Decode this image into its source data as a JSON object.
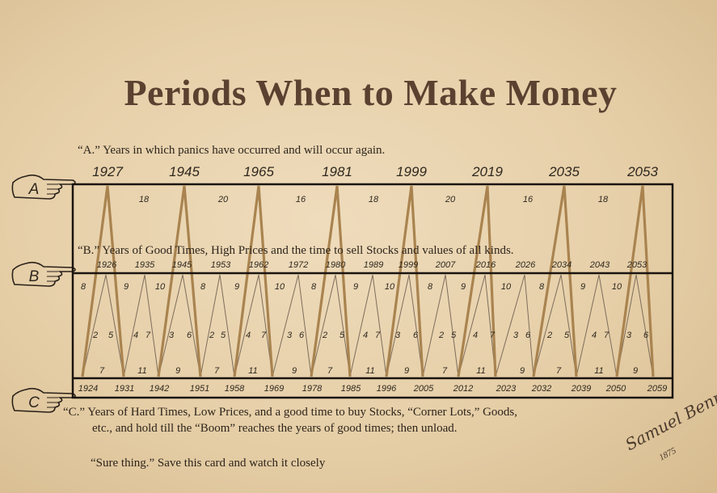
{
  "title": "Periods When to Make Money",
  "notes": {
    "a": "“A.” Years in which panics have occurred and will occur again.",
    "b": "“B.” Years of Good Times, High Prices and the time to sell Stocks and values of all kinds.",
    "c_line1": "“C.”    Years of Hard Times, Low Prices, and a good time to buy Stocks, “Corner Lots,” Goods,",
    "c_line2": "etc., and hold till  the “Boom” reaches the years of good times; then unload.",
    "sure": "“Sure thing.” Save this card and watch it closely"
  },
  "hands": {
    "a": "A",
    "b": "B",
    "c": "C",
    "icon": "pointing-hand-icon"
  },
  "chart_data": {
    "type": "diagram",
    "panic_years": [
      "1927",
      "1945",
      "1965",
      "1981",
      "1999",
      "2019",
      "2035",
      "2053"
    ],
    "panic_intervals": [
      "18",
      "20",
      "16",
      "18",
      "20",
      "16",
      "18"
    ],
    "good_times_years": [
      "1926",
      "1935",
      "1945",
      "1953",
      "1962",
      "1972",
      "1980",
      "1989",
      "1999",
      "2007",
      "2016",
      "2026",
      "2034",
      "2043",
      "2053"
    ],
    "hard_times_years": [
      "1924",
      "1931",
      "1942",
      "1951",
      "1958",
      "1969",
      "1978",
      "1985",
      "1996",
      "2005",
      "2012",
      "2023",
      "2032",
      "2039",
      "2050",
      "2059"
    ],
    "interval_labels": {
      "upper": [
        "8",
        "9",
        "10",
        "8",
        "9",
        "10",
        "8",
        "9",
        "10",
        "8",
        "9",
        "10",
        "8",
        "9",
        "10"
      ],
      "middle": [
        "2",
        "5",
        "4",
        "7",
        "3",
        "6",
        "2",
        "5",
        "4",
        "7",
        "3",
        "6",
        "2",
        "5",
        "4",
        "7",
        "3",
        "6",
        "2",
        "5",
        "4",
        "7",
        "3",
        "6",
        "2",
        "5",
        "4",
        "7",
        "3",
        "6"
      ],
      "lower": [
        "7",
        "11",
        "9",
        "7",
        "11",
        "9",
        "7",
        "11",
        "9",
        "7",
        "11",
        "9",
        "7",
        "11",
        "9"
      ]
    },
    "colors": {
      "major": "#a9834f",
      "minor": "#7d6d5c",
      "frame": "#1a1410"
    }
  },
  "signature": {
    "name": "Samuel Benner",
    "year": "1875"
  }
}
